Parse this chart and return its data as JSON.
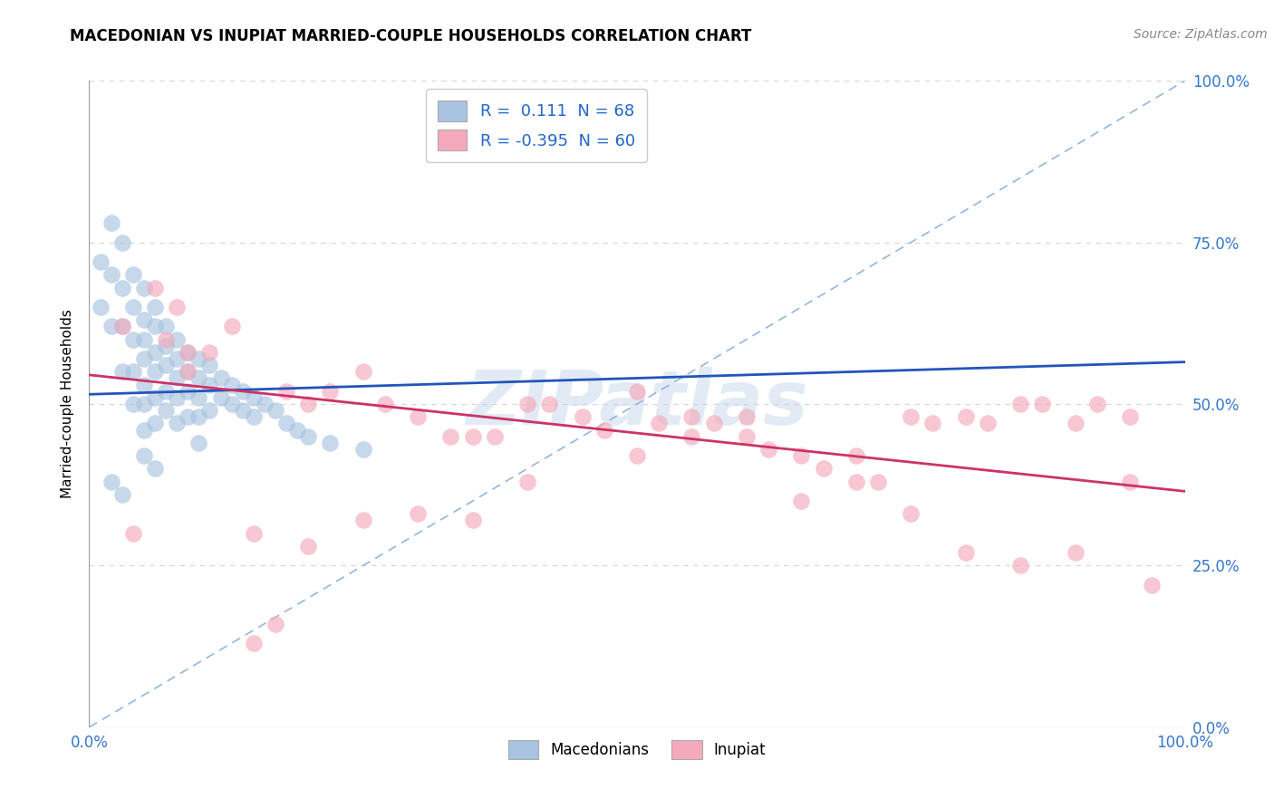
{
  "title": "MACEDONIAN VS INUPIAT MARRIED-COUPLE HOUSEHOLDS CORRELATION CHART",
  "source": "Source: ZipAtlas.com",
  "ylabel": "Married-couple Households",
  "xlim": [
    0.0,
    1.0
  ],
  "ylim": [
    0.0,
    1.0
  ],
  "xticks": [
    0.0,
    0.25,
    0.5,
    0.75,
    1.0
  ],
  "yticks": [
    0.0,
    0.25,
    0.5,
    0.75,
    1.0
  ],
  "ytick_labels_right": [
    "0.0%",
    "25.0%",
    "50.0%",
    "75.0%",
    "100.0%"
  ],
  "macedonian_color": "#a8c4e0",
  "inupiat_color": "#f4aabc",
  "macedonian_line_color": "#2255bb",
  "inupiat_line_color": "#cc3366",
  "diagonal_color": "#88aedd",
  "grid_color": "#cccccc",
  "watermark_text": "ZIPatlas",
  "legend_R_mac": " 0.111",
  "legend_N_mac": "68",
  "legend_R_inp": "-0.395",
  "legend_N_inp": "60",
  "macedonian_x": [
    0.01,
    0.01,
    0.02,
    0.02,
    0.02,
    0.03,
    0.03,
    0.03,
    0.03,
    0.04,
    0.04,
    0.04,
    0.04,
    0.04,
    0.05,
    0.05,
    0.05,
    0.05,
    0.05,
    0.05,
    0.05,
    0.06,
    0.06,
    0.06,
    0.06,
    0.06,
    0.06,
    0.07,
    0.07,
    0.07,
    0.07,
    0.07,
    0.08,
    0.08,
    0.08,
    0.08,
    0.08,
    0.09,
    0.09,
    0.09,
    0.09,
    0.1,
    0.1,
    0.1,
    0.1,
    0.1,
    0.11,
    0.11,
    0.11,
    0.12,
    0.12,
    0.13,
    0.13,
    0.14,
    0.14,
    0.15,
    0.15,
    0.16,
    0.17,
    0.18,
    0.19,
    0.2,
    0.22,
    0.25,
    0.02,
    0.03,
    0.05,
    0.06
  ],
  "macedonian_y": [
    0.72,
    0.65,
    0.78,
    0.7,
    0.62,
    0.75,
    0.68,
    0.62,
    0.55,
    0.7,
    0.65,
    0.6,
    0.55,
    0.5,
    0.68,
    0.63,
    0.6,
    0.57,
    0.53,
    0.5,
    0.46,
    0.65,
    0.62,
    0.58,
    0.55,
    0.51,
    0.47,
    0.62,
    0.59,
    0.56,
    0.52,
    0.49,
    0.6,
    0.57,
    0.54,
    0.51,
    0.47,
    0.58,
    0.55,
    0.52,
    0.48,
    0.57,
    0.54,
    0.51,
    0.48,
    0.44,
    0.56,
    0.53,
    0.49,
    0.54,
    0.51,
    0.53,
    0.5,
    0.52,
    0.49,
    0.51,
    0.48,
    0.5,
    0.49,
    0.47,
    0.46,
    0.45,
    0.44,
    0.43,
    0.38,
    0.36,
    0.42,
    0.4
  ],
  "inupiat_x": [
    0.03,
    0.04,
    0.06,
    0.07,
    0.08,
    0.09,
    0.09,
    0.11,
    0.13,
    0.15,
    0.17,
    0.18,
    0.2,
    0.22,
    0.25,
    0.27,
    0.3,
    0.33,
    0.35,
    0.37,
    0.4,
    0.42,
    0.45,
    0.47,
    0.5,
    0.52,
    0.55,
    0.57,
    0.6,
    0.62,
    0.65,
    0.67,
    0.7,
    0.72,
    0.75,
    0.77,
    0.8,
    0.82,
    0.85,
    0.87,
    0.9,
    0.92,
    0.95,
    0.97,
    0.65,
    0.7,
    0.8,
    0.85,
    0.9,
    0.95,
    0.15,
    0.2,
    0.3,
    0.4,
    0.55,
    0.6,
    0.75,
    0.5,
    0.35,
    0.25
  ],
  "inupiat_y": [
    0.62,
    0.3,
    0.68,
    0.6,
    0.65,
    0.58,
    0.55,
    0.58,
    0.62,
    0.13,
    0.16,
    0.52,
    0.5,
    0.52,
    0.55,
    0.5,
    0.48,
    0.45,
    0.45,
    0.45,
    0.5,
    0.5,
    0.48,
    0.46,
    0.52,
    0.47,
    0.48,
    0.47,
    0.45,
    0.43,
    0.42,
    0.4,
    0.42,
    0.38,
    0.48,
    0.47,
    0.48,
    0.47,
    0.5,
    0.5,
    0.47,
    0.5,
    0.38,
    0.22,
    0.35,
    0.38,
    0.27,
    0.25,
    0.27,
    0.48,
    0.3,
    0.28,
    0.33,
    0.38,
    0.45,
    0.48,
    0.33,
    0.42,
    0.32,
    0.32
  ]
}
